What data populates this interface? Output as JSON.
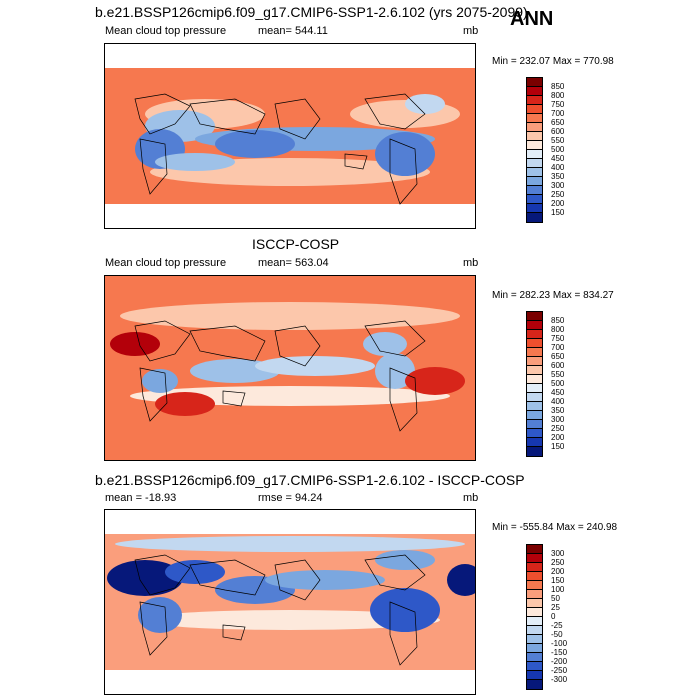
{
  "season": "ANN",
  "panels": [
    {
      "title": "b.e21.BSSP126cmip6.f09_g17.CMIP6-SSP1-2.6.102 (yrs 2075-2099)",
      "left_label": "Mean cloud top pressure",
      "center_label": "mean= 544.11",
      "units": "mb",
      "minmax": "Min = 232.07 Max = 770.98",
      "colorbar_labels": [
        "850",
        "800",
        "750",
        "700",
        "650",
        "600",
        "550",
        "500",
        "450",
        "400",
        "350",
        "300",
        "250",
        "200",
        "150"
      ]
    },
    {
      "title": "ISCCP-COSP",
      "left_label": "Mean cloud top pressure",
      "center_label": "mean= 563.04",
      "units": "mb",
      "minmax": "Min = 282.23 Max = 834.27",
      "colorbar_labels": [
        "850",
        "800",
        "750",
        "700",
        "650",
        "600",
        "550",
        "500",
        "450",
        "400",
        "350",
        "300",
        "250",
        "200",
        "150"
      ]
    },
    {
      "title": "b.e21.BSSP126cmip6.f09_g17.CMIP6-SSP1-2.6.102 - ISCCP-COSP",
      "left_label": "mean = -18.93",
      "center_label": "rmse =  94.24",
      "units": "mb",
      "minmax": "Min = -555.84 Max = 240.98",
      "colorbar_labels": [
        "300",
        "250",
        "200",
        "150",
        "100",
        "50",
        "25",
        "0",
        "-25",
        "-50",
        "-100",
        "-150",
        "-200",
        "-250",
        "-300"
      ]
    }
  ],
  "colors": {
    "abs_scale": [
      "#7a0000",
      "#b3000a",
      "#d7251a",
      "#ee4f2e",
      "#f6784f",
      "#fa9e7c",
      "#fcc7ab",
      "#fde9dc",
      "#e3eef8",
      "#c2d8f0",
      "#9ec1e8",
      "#7ba7df",
      "#537fd4",
      "#2e58c8",
      "#1637b0",
      "#06187a"
    ],
    "diff_scale": [
      "#7a0000",
      "#b3000a",
      "#d7251a",
      "#ee4f2e",
      "#f6784f",
      "#fa9e7c",
      "#fcc7ab",
      "#fde9dc",
      "#e3eef8",
      "#c2d8f0",
      "#9ec1e8",
      "#7ba7df",
      "#537fd4",
      "#2e58c8",
      "#1637b0",
      "#06187a"
    ]
  }
}
